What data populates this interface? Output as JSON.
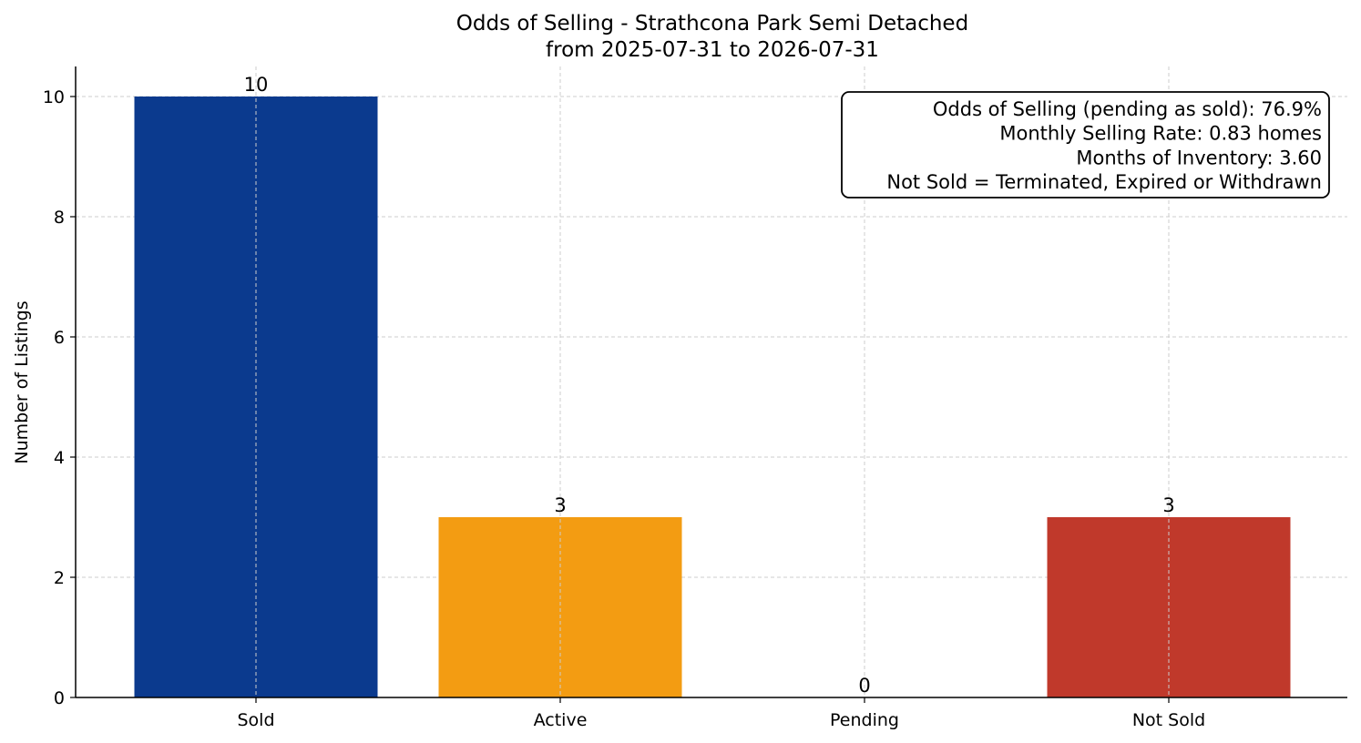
{
  "chart_data": {
    "type": "bar",
    "title": "Odds of Selling - Strathcona Park Semi Detached",
    "subtitle": "from 2025-07-31 to 2026-07-31",
    "xlabel": "",
    "ylabel": "Number of Listings",
    "categories": [
      "Sold",
      "Active",
      "Pending",
      "Not Sold"
    ],
    "values": [
      10,
      3,
      0,
      3
    ],
    "data_labels": [
      "10",
      "3",
      "0",
      "3"
    ],
    "colors": [
      "#0b3a8e",
      "#f39c12",
      "#3a8e3a",
      "#c0392b"
    ],
    "ylim": [
      0,
      10.5
    ],
    "yticks": [
      0,
      2,
      4,
      6,
      8,
      10
    ],
    "ytick_labels": [
      "0",
      "2",
      "4",
      "6",
      "8",
      "10"
    ],
    "grid": true,
    "info_box": {
      "placement": "top-right",
      "lines": [
        "Odds of Selling (pending as sold): 76.9%",
        "Monthly Selling Rate: 0.83 homes",
        "Months of Inventory: 3.60",
        "Not Sold = Terminated, Expired or Withdrawn"
      ]
    }
  }
}
